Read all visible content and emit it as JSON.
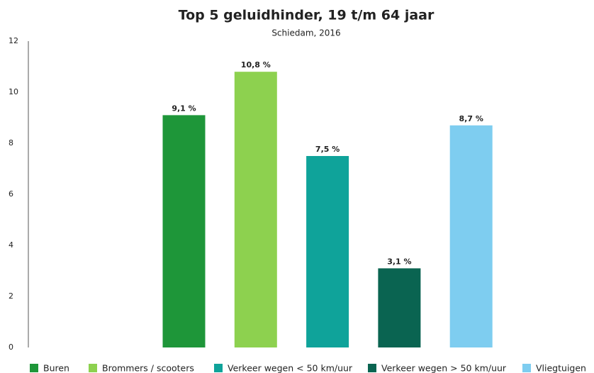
{
  "chart_data": {
    "type": "bar",
    "title": "Top 5 geluidhinder, 19 t/m 64 jaar",
    "subtitle": "Schiedam, 2016",
    "series": [
      {
        "name": "Buren",
        "color": "#1e9639",
        "values": [
          9.1
        ],
        "value_labels": [
          "9,1 %"
        ]
      },
      {
        "name": "Brommers / scooters",
        "color": "#8dd14f",
        "values": [
          10.8
        ],
        "value_labels": [
          "10,8 %"
        ]
      },
      {
        "name": "Verkeer wegen < 50 km/uur",
        "color": "#0fa39a",
        "values": [
          7.5
        ],
        "value_labels": [
          "7,5 %"
        ]
      },
      {
        "name": "Verkeer wegen > 50 km/uur",
        "color": "#0a6451",
        "values": [
          3.1
        ],
        "value_labels": [
          "3,1 %"
        ]
      },
      {
        "name": "Vliegtuigen",
        "color": "#7ecdf0",
        "values": [
          8.7
        ],
        "value_labels": [
          "8,7 %"
        ]
      }
    ],
    "ylim": [
      0,
      12
    ],
    "yticks": [
      0,
      2,
      4,
      6,
      8,
      10,
      12
    ],
    "grid": false,
    "legend": "bottom"
  }
}
